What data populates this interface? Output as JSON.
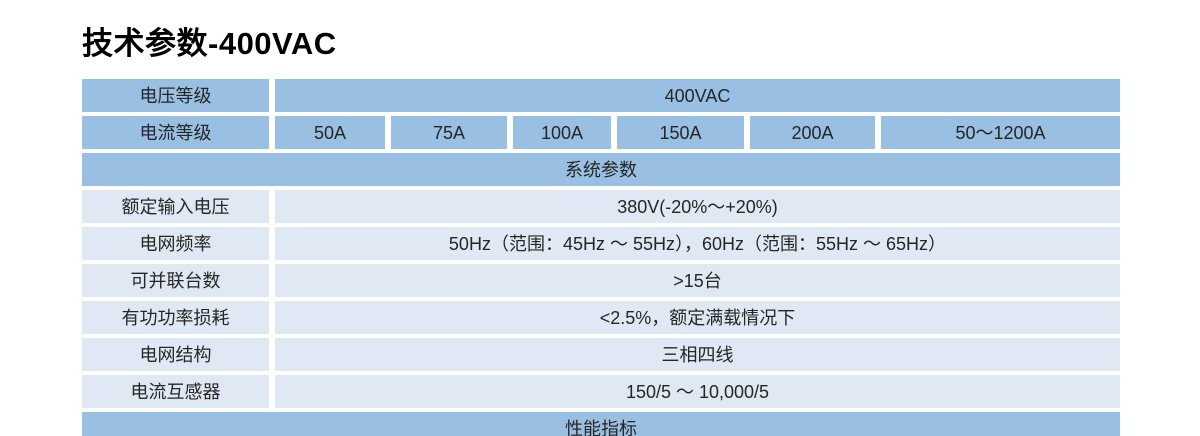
{
  "page": {
    "title": "技术参数-400VAC"
  },
  "table": {
    "voltage_row": {
      "label": "电压等级",
      "value": "400VAC"
    },
    "current_row": {
      "label": "电流等级",
      "values": [
        "50A",
        "75A",
        "100A",
        "150A",
        "200A",
        "50～1200A"
      ]
    },
    "system_header": "系统参数",
    "system_rows": [
      {
        "label": "额定输入电压",
        "value": "380V(-20%～+20%)"
      },
      {
        "label": "电网频率",
        "value": "50Hz（范围：45Hz ～ 55Hz），60Hz（范围：55Hz ～ 65Hz）"
      },
      {
        "label": "可并联台数",
        "value": ">15台"
      },
      {
        "label": "有功功率损耗",
        "value": "<2.5%，额定满载情况下"
      },
      {
        "label": "电网结构",
        "value": "三相四线"
      },
      {
        "label": "电流互感器",
        "value": "150/5 ～ 10,000/5"
      }
    ],
    "performance_header": "性能指标"
  },
  "colors": {
    "header_blue": "#99BFE2",
    "row_light_blue": "#DFE8F3",
    "text": "#262626",
    "title_text": "#000000"
  }
}
